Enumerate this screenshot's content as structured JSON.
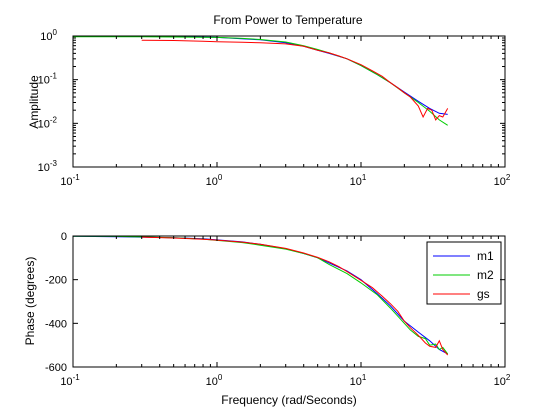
{
  "chart_data": [
    {
      "type": "line",
      "title": "From Power to Temperature",
      "xlabel": "",
      "ylabel": "Amplitude",
      "xscale": "log",
      "yscale": "log",
      "xlim": [
        0.1,
        100
      ],
      "ylim": [
        0.001,
        1
      ],
      "grid": false,
      "x_tick_labels": [
        {
          "value": 0.1,
          "base": "10",
          "exp": "-1"
        },
        {
          "value": 1,
          "base": "10",
          "exp": "0"
        },
        {
          "value": 10,
          "base": "10",
          "exp": "1"
        },
        {
          "value": 100,
          "base": "10",
          "exp": "2"
        }
      ],
      "y_tick_labels": [
        {
          "value": 0.001,
          "base": "10",
          "exp": "-3"
        },
        {
          "value": 0.01,
          "base": "10",
          "exp": "-2"
        },
        {
          "value": 0.1,
          "base": "10",
          "exp": "-1"
        },
        {
          "value": 1,
          "base": "10",
          "exp": "0"
        }
      ],
      "series": [
        {
          "name": "m1",
          "color": "#0000ff",
          "x": [
            0.1,
            0.3,
            0.5,
            1,
            2,
            3,
            4,
            5,
            6,
            8,
            10,
            13,
            16,
            20,
            25,
            30,
            35,
            40
          ],
          "y": [
            0.98,
            0.98,
            0.97,
            0.93,
            0.82,
            0.7,
            0.58,
            0.47,
            0.4,
            0.3,
            0.21,
            0.13,
            0.085,
            0.052,
            0.032,
            0.022,
            0.017,
            0.016
          ]
        },
        {
          "name": "m2",
          "color": "#00cc00",
          "x": [
            0.1,
            0.3,
            0.5,
            1,
            1.5,
            2,
            3,
            4,
            5,
            6,
            8,
            10,
            13,
            16,
            20,
            25,
            30,
            35,
            40
          ],
          "y": [
            0.96,
            0.96,
            0.95,
            0.93,
            0.88,
            0.83,
            0.73,
            0.6,
            0.49,
            0.41,
            0.3,
            0.21,
            0.13,
            0.085,
            0.05,
            0.03,
            0.019,
            0.012,
            0.009
          ]
        },
        {
          "name": "gs",
          "color": "#ff0000",
          "x": [
            0.3,
            0.5,
            0.8,
            1,
            1.5,
            2,
            3,
            4,
            5,
            6,
            7,
            8,
            10,
            12,
            14,
            16,
            18,
            20,
            22,
            25,
            27,
            29,
            31,
            33,
            35,
            37,
            40
          ],
          "y": [
            0.8,
            0.79,
            0.76,
            0.74,
            0.72,
            0.7,
            0.66,
            0.58,
            0.47,
            0.41,
            0.35,
            0.3,
            0.22,
            0.16,
            0.12,
            0.085,
            0.065,
            0.05,
            0.04,
            0.025,
            0.014,
            0.022,
            0.02,
            0.012,
            0.015,
            0.014,
            0.022
          ]
        }
      ]
    },
    {
      "type": "line",
      "title": "",
      "xlabel": "Frequency (rad/Seconds)",
      "ylabel": "Phase (degrees)",
      "xscale": "log",
      "yscale": "linear",
      "xlim": [
        0.1,
        100
      ],
      "ylim": [
        -600,
        0
      ],
      "grid": false,
      "legend_position": "top-right",
      "x_tick_labels": [
        {
          "value": 0.1,
          "base": "10",
          "exp": "-1"
        },
        {
          "value": 1,
          "base": "10",
          "exp": "0"
        },
        {
          "value": 10,
          "base": "10",
          "exp": "1"
        },
        {
          "value": 100,
          "base": "10",
          "exp": "2"
        }
      ],
      "y_tick_labels": [
        {
          "value": -600,
          "text": "-600"
        },
        {
          "value": -400,
          "text": "-400"
        },
        {
          "value": -200,
          "text": "-200"
        },
        {
          "value": 0,
          "text": "0"
        }
      ],
      "series": [
        {
          "name": "m1",
          "color": "#0000ff",
          "x": [
            0.1,
            0.2,
            0.3,
            0.5,
            0.8,
            1,
            1.5,
            2,
            3,
            4,
            5,
            6,
            8,
            10,
            13,
            16,
            20,
            25,
            30,
            35,
            40
          ],
          "y": [
            -1,
            -3,
            -5,
            -8,
            -13,
            -18,
            -27,
            -38,
            -58,
            -80,
            -100,
            -123,
            -160,
            -200,
            -265,
            -320,
            -390,
            -440,
            -480,
            -520,
            -540
          ]
        },
        {
          "name": "m2",
          "color": "#00cc00",
          "x": [
            0.1,
            0.2,
            0.3,
            0.5,
            0.8,
            1,
            1.5,
            2,
            3,
            4,
            5,
            6,
            8,
            10,
            13,
            16,
            20,
            22,
            25,
            28,
            30,
            33,
            35,
            37,
            40
          ],
          "y": [
            -1,
            -2,
            -4,
            -8,
            -14,
            -20,
            -30,
            -42,
            -60,
            -80,
            -100,
            -130,
            -172,
            -215,
            -270,
            -330,
            -400,
            -430,
            -460,
            -470,
            -500,
            -495,
            -520,
            -510,
            -540
          ]
        },
        {
          "name": "gs",
          "color": "#ff0000",
          "x": [
            0.3,
            0.5,
            0.8,
            1,
            1.5,
            2,
            3,
            4,
            5,
            6,
            7,
            8,
            10,
            12,
            14,
            16,
            18,
            20,
            22,
            25,
            28,
            30,
            33,
            35,
            37,
            40
          ],
          "y": [
            -5,
            -9,
            -15,
            -19,
            -28,
            -38,
            -57,
            -78,
            -98,
            -118,
            -140,
            -163,
            -203,
            -237,
            -275,
            -310,
            -345,
            -390,
            -420,
            -455,
            -490,
            -505,
            -510,
            -480,
            -520,
            -545
          ]
        }
      ]
    }
  ]
}
